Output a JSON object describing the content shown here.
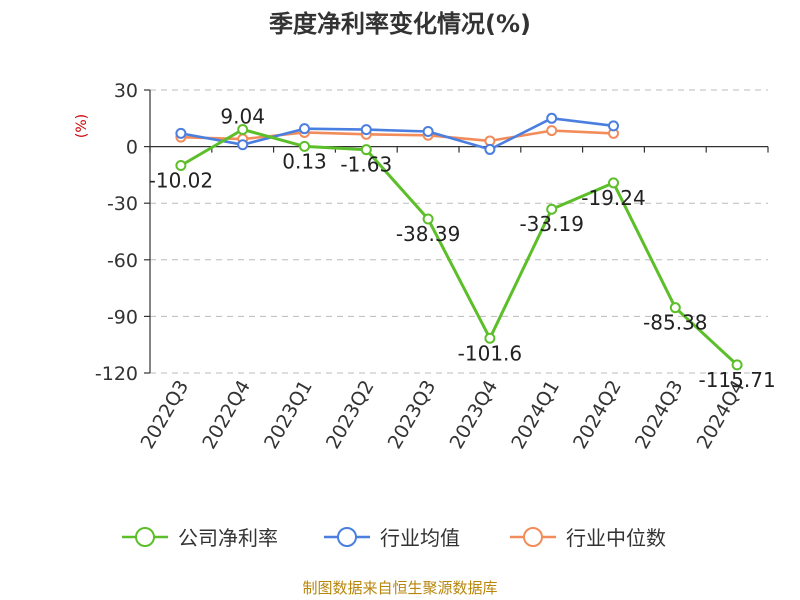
{
  "chart_data": {
    "type": "line",
    "title": "季度净利率变化情况(%)",
    "ylabel": "(%)",
    "xlabel": "",
    "ylim": [
      -120,
      30
    ],
    "yticks": [
      30,
      0,
      -30,
      -60,
      -90,
      -120
    ],
    "grid": true,
    "legend_position": "bottom",
    "categories": [
      "2022Q3",
      "2022Q4",
      "2023Q1",
      "2023Q2",
      "2023Q3",
      "2023Q4",
      "2024Q1",
      "2024Q2",
      "2024Q3",
      "2024Q4"
    ],
    "series": [
      {
        "name": "公司净利率",
        "color": "#5cbf2a",
        "values": [
          -10.02,
          9.04,
          0.13,
          -1.63,
          -38.39,
          -101.6,
          -33.19,
          -19.24,
          -85.38,
          -115.71
        ],
        "labels": [
          "-10.02",
          "9.04",
          "0.13",
          "-1.63",
          "-38.39",
          "-101.6",
          "-33.19",
          "-19.24",
          "-85.38",
          "-115.71"
        ]
      },
      {
        "name": "行业均值",
        "color": "#4a7fe0",
        "values": [
          7.0,
          1.0,
          9.5,
          9.0,
          8.0,
          -1.5,
          15.0,
          11.0,
          null,
          null
        ]
      },
      {
        "name": "行业中位数",
        "color": "#f28c5a",
        "values": [
          5.0,
          4.0,
          7.5,
          6.5,
          6.0,
          3.0,
          8.5,
          7.0,
          null,
          null
        ]
      }
    ]
  },
  "footer": {
    "source": "制图数据来自恒生聚源数据库"
  }
}
